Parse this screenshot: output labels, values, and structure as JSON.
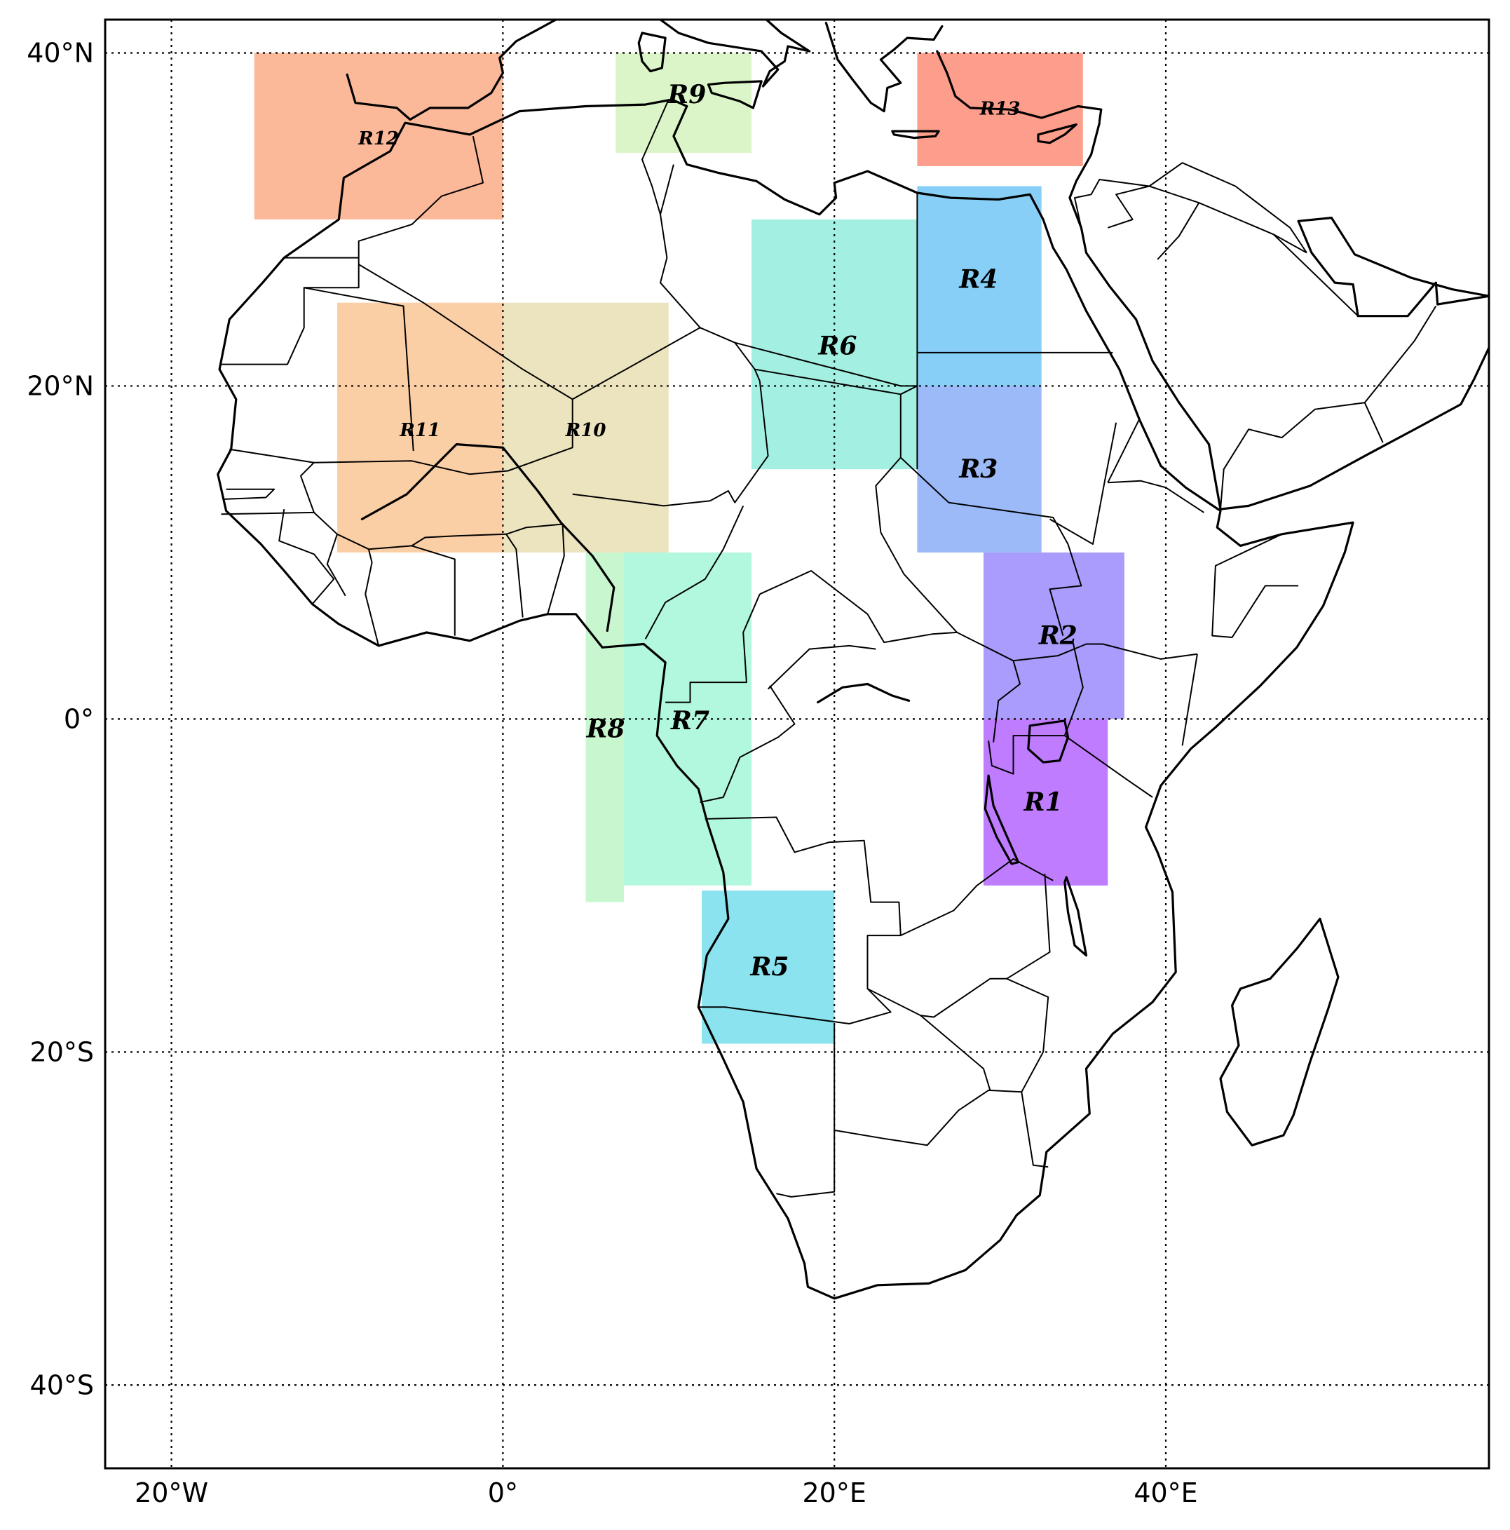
{
  "map": {
    "extent": {
      "lon": [
        -24,
        59.5
      ],
      "lat": [
        -45,
        42
      ]
    },
    "gridlines": {
      "lon": [
        -20,
        0,
        20,
        40
      ],
      "lat": [
        40,
        20,
        0,
        -20,
        -40
      ]
    },
    "axis": {
      "lon_labels": [
        "20°W",
        "0°",
        "20°E",
        "40°E"
      ],
      "lat_labels": [
        "40°N",
        "20°N",
        "0°",
        "20°S",
        "40°S"
      ]
    },
    "regions": [
      {
        "name": "R1",
        "lon": [
          29,
          36.5
        ],
        "lat": [
          -10,
          0
        ],
        "color": "#c07cff",
        "label_lon": 32.6,
        "label_lat": -5
      },
      {
        "name": "R2",
        "lon": [
          29,
          37.5
        ],
        "lat": [
          0,
          10
        ],
        "color": "#a99cfc",
        "label_lon": 33.5,
        "label_lat": 5
      },
      {
        "name": "R3",
        "lon": [
          25,
          32.5
        ],
        "lat": [
          10,
          20
        ],
        "color": "#9cb9f8",
        "label_lon": 28.7,
        "label_lat": 15
      },
      {
        "name": "R4",
        "lon": [
          25,
          32.5
        ],
        "lat": [
          20,
          32
        ],
        "color": "#87cff6",
        "label_lon": 28.7,
        "label_lat": 26.4
      },
      {
        "name": "R5",
        "lon": [
          12,
          20
        ],
        "lat": [
          -19.5,
          -10.3
        ],
        "color": "#8ae3ee",
        "label_lon": 16.1,
        "label_lat": -14.9
      },
      {
        "name": "R6",
        "lon": [
          15,
          25
        ],
        "lat": [
          15,
          30
        ],
        "color": "#a3f0e2",
        "label_lon": 20.2,
        "label_lat": 22.4
      },
      {
        "name": "R7",
        "lon": [
          7.3,
          15
        ],
        "lat": [
          -10,
          10
        ],
        "color": "#b2f8df",
        "label_lon": 11.3,
        "label_lat": -0.1
      },
      {
        "name": "R8",
        "lon": [
          5,
          7.3
        ],
        "lat": [
          -11,
          10
        ],
        "color": "#c8f7cf",
        "label_lon": 6.2,
        "label_lat": -0.6
      },
      {
        "name": "R9",
        "lon": [
          6.8,
          15
        ],
        "lat": [
          34,
          40
        ],
        "color": "#dbf5c8",
        "label_lon": 11.1,
        "label_lat": 37.5
      },
      {
        "name": "R10",
        "lon": [
          0,
          10
        ],
        "lat": [
          10,
          25
        ],
        "color": "#ece4be",
        "label_lon": 5,
        "label_lat": 17.5
      },
      {
        "name": "R11",
        "lon": [
          -10,
          0
        ],
        "lat": [
          10,
          25
        ],
        "color": "#fbcfa6",
        "label_lon": -5,
        "label_lat": 17.5
      },
      {
        "name": "R12",
        "lon": [
          -15,
          0
        ],
        "lat": [
          30,
          40
        ],
        "color": "#fbb99a",
        "label_lon": -7.5,
        "label_lat": 35
      },
      {
        "name": "R13",
        "lon": [
          25,
          35
        ],
        "lat": [
          33.2,
          40
        ],
        "color": "#fd9e8c",
        "label_lon": 30,
        "label_lat": 36.8
      }
    ]
  }
}
